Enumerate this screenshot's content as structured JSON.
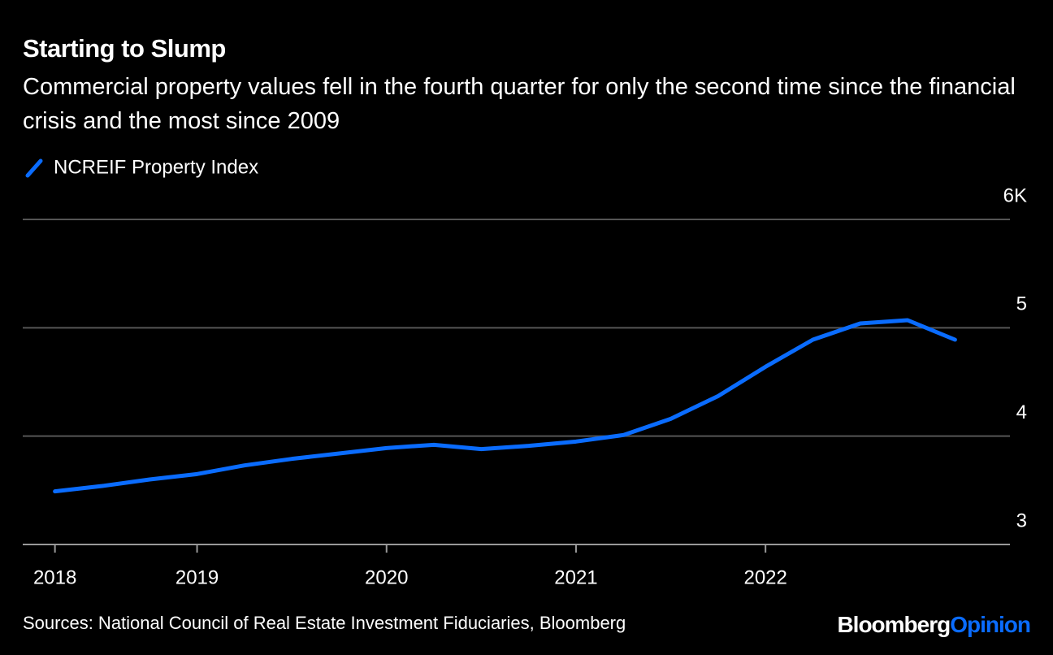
{
  "chart_data": {
    "type": "line",
    "title": "Starting to Slump",
    "subtitle": "Commercial property values fell in the fourth quarter for only the second time since the financial crisis and the most since 2009",
    "x": [
      2018.25,
      2018.5,
      2018.75,
      2019.0,
      2019.25,
      2019.5,
      2019.75,
      2020.0,
      2020.25,
      2020.5,
      2020.75,
      2021.0,
      2021.25,
      2021.5,
      2021.75,
      2022.0,
      2022.25,
      2022.5,
      2022.75,
      2023.0
    ],
    "series": [
      {
        "name": "NCREIF Property Index",
        "color": "#0a6cff",
        "values": [
          3.49,
          3.54,
          3.6,
          3.65,
          3.73,
          3.79,
          3.84,
          3.89,
          3.92,
          3.88,
          3.91,
          3.95,
          4.01,
          4.16,
          4.37,
          4.64,
          4.89,
          5.04,
          5.07,
          4.89
        ]
      }
    ],
    "xlim": [
      2018.08,
      2023.29
    ],
    "xticks": [
      {
        "value": 2018.25,
        "label": "2018"
      },
      {
        "value": 2019.0,
        "label": "2019"
      },
      {
        "value": 2020.0,
        "label": "2020"
      },
      {
        "value": 2021.0,
        "label": "2021"
      },
      {
        "value": 2022.0,
        "label": "2022"
      }
    ],
    "ylim": [
      3,
      6
    ],
    "yticks": [
      3,
      4,
      5,
      {
        "value": 6,
        "label": "6K"
      }
    ],
    "grid": true,
    "legend": "top-left",
    "source": "Sources: National Council of Real Estate Investment Fiduciaries, Bloomberg",
    "logo": [
      "Bloomberg",
      "Opinion"
    ]
  }
}
